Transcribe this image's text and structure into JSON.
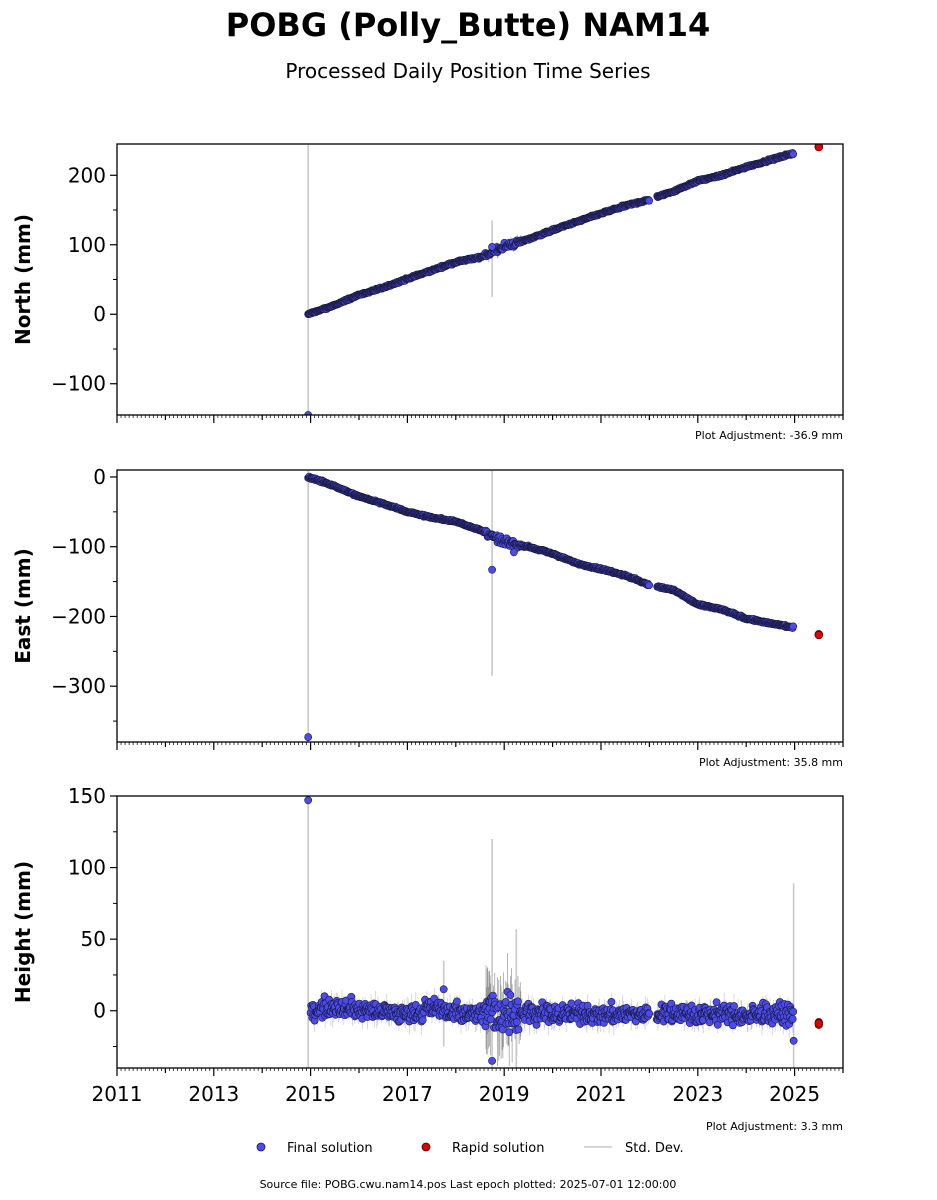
{
  "title": "POBG (Polly_Butte) NAM14",
  "subtitle": "Processed Daily Position Time Series",
  "source_text": "Source file: POBG.cwu.nam14.pos  Last epoch plotted: 2025-07-01 12:00:00",
  "legend": {
    "final": "Final solution",
    "rapid": "Rapid solution",
    "stddev": "Std. Dev."
  },
  "colors": {
    "final_fill": "#4b4bec",
    "final_edge": "#1a1a40",
    "rapid_fill": "#e00000",
    "rapid_edge": "#400000",
    "stddev": "#c8c8c8",
    "stddev_dark": "#555555"
  },
  "chart_data": [
    {
      "type": "scatter",
      "ylabel": "North (mm)",
      "adjustment": "Plot Adjustment: -36.9 mm",
      "xlim": [
        2011.0,
        2026.0
      ],
      "ylim": [
        -145,
        245
      ],
      "yticks": [
        -100,
        0,
        100,
        200
      ],
      "ytick_labels": [
        "−100",
        "0",
        "100",
        "200"
      ],
      "grid": false,
      "final_series": [
        {
          "x": 2014.95,
          "y": 0
        },
        {
          "x": 2015.5,
          "y": 13
        },
        {
          "x": 2016.0,
          "y": 28
        },
        {
          "x": 2016.5,
          "y": 38
        },
        {
          "x": 2017.0,
          "y": 51
        },
        {
          "x": 2017.5,
          "y": 63
        },
        {
          "x": 2018.0,
          "y": 75
        },
        {
          "x": 2018.5,
          "y": 82
        },
        {
          "x": 2018.75,
          "y": 89
        },
        {
          "x": 2019.0,
          "y": 97
        },
        {
          "x": 2019.5,
          "y": 108
        },
        {
          "x": 2020.0,
          "y": 121
        },
        {
          "x": 2020.5,
          "y": 133
        },
        {
          "x": 2021.0,
          "y": 145
        },
        {
          "x": 2021.5,
          "y": 156
        },
        {
          "x": 2022.0,
          "y": 165
        },
        {
          "x": 2022.5,
          "y": 177
        },
        {
          "x": 2023.0,
          "y": 192
        },
        {
          "x": 2023.5,
          "y": 200
        },
        {
          "x": 2024.0,
          "y": 212
        },
        {
          "x": 2024.5,
          "y": 222
        },
        {
          "x": 2024.98,
          "y": 232
        }
      ],
      "rapid_series": [
        {
          "x": 2025.5,
          "y": 241
        }
      ],
      "outliers": [
        {
          "x": 2014.95,
          "y": -145
        },
        {
          "x": 2018.75,
          "y": 97
        }
      ],
      "stddev_spikes": [
        {
          "x": 2014.95,
          "low": -145,
          "high": 245
        },
        {
          "x": 2018.75,
          "low": 25,
          "high": 135
        }
      ]
    },
    {
      "type": "scatter",
      "ylabel": "East (mm)",
      "adjustment": "Plot Adjustment: 35.8 mm",
      "xlim": [
        2011.0,
        2026.0
      ],
      "ylim": [
        -380,
        10
      ],
      "yticks": [
        -300,
        -200,
        -100,
        0
      ],
      "ytick_labels": [
        "−300",
        "−200",
        "−100",
        "0"
      ],
      "grid": false,
      "final_series": [
        {
          "x": 2014.95,
          "y": 0
        },
        {
          "x": 2015.5,
          "y": -13
        },
        {
          "x": 2016.0,
          "y": -28
        },
        {
          "x": 2016.5,
          "y": -38
        },
        {
          "x": 2017.0,
          "y": -50
        },
        {
          "x": 2017.5,
          "y": -58
        },
        {
          "x": 2018.0,
          "y": -64
        },
        {
          "x": 2018.5,
          "y": -76
        },
        {
          "x": 2018.75,
          "y": -85
        },
        {
          "x": 2019.0,
          "y": -93
        },
        {
          "x": 2019.5,
          "y": -100
        },
        {
          "x": 2020.0,
          "y": -110
        },
        {
          "x": 2020.5,
          "y": -124
        },
        {
          "x": 2021.0,
          "y": -132
        },
        {
          "x": 2021.5,
          "y": -141
        },
        {
          "x": 2022.0,
          "y": -155
        },
        {
          "x": 2022.5,
          "y": -162
        },
        {
          "x": 2023.0,
          "y": -183
        },
        {
          "x": 2023.5,
          "y": -190
        },
        {
          "x": 2024.0,
          "y": -203
        },
        {
          "x": 2024.5,
          "y": -210
        },
        {
          "x": 2024.98,
          "y": -216
        }
      ],
      "rapid_series": [
        {
          "x": 2025.5,
          "y": -226
        }
      ],
      "outliers": [
        {
          "x": 2014.95,
          "y": -373
        },
        {
          "x": 2018.75,
          "y": -133
        },
        {
          "x": 2019.2,
          "y": -108
        }
      ],
      "stddev_spikes": [
        {
          "x": 2014.95,
          "low": -380,
          "high": 10
        },
        {
          "x": 2018.75,
          "low": -285,
          "high": 10
        }
      ]
    },
    {
      "type": "scatter",
      "ylabel": "Height (mm)",
      "adjustment": "Plot Adjustment: 3.3 mm",
      "xlim": [
        2011.0,
        2026.0
      ],
      "ylim": [
        -40,
        150
      ],
      "yticks": [
        0,
        50,
        100,
        150
      ],
      "ytick_labels": [
        "0",
        "50",
        "100",
        "150"
      ],
      "xticks": [
        2011,
        2013,
        2015,
        2017,
        2019,
        2021,
        2023,
        2025
      ],
      "xtick_labels": [
        "2011",
        "2013",
        "2015",
        "2017",
        "2019",
        "2021",
        "2023",
        "2025"
      ],
      "grid": false,
      "final_series": [
        {
          "x": 2015.0,
          "y": 0
        },
        {
          "x": 2015.5,
          "y": 4
        },
        {
          "x": 2016.0,
          "y": 1
        },
        {
          "x": 2016.5,
          "y": -1
        },
        {
          "x": 2017.0,
          "y": -3
        },
        {
          "x": 2017.5,
          "y": 2
        },
        {
          "x": 2018.0,
          "y": -1
        },
        {
          "x": 2018.5,
          "y": -2
        },
        {
          "x": 2018.75,
          "y": 0
        },
        {
          "x": 2019.0,
          "y": -2
        },
        {
          "x": 2019.5,
          "y": 0
        },
        {
          "x": 2020.0,
          "y": -3
        },
        {
          "x": 2020.5,
          "y": -2
        },
        {
          "x": 2021.0,
          "y": -3
        },
        {
          "x": 2021.5,
          "y": -2
        },
        {
          "x": 2022.0,
          "y": -3
        },
        {
          "x": 2022.5,
          "y": -2
        },
        {
          "x": 2023.0,
          "y": -3
        },
        {
          "x": 2023.5,
          "y": -2
        },
        {
          "x": 2024.0,
          "y": -4
        },
        {
          "x": 2024.5,
          "y": -2
        },
        {
          "x": 2024.98,
          "y": -3
        }
      ],
      "rapid_series": [
        {
          "x": 2025.5,
          "y": -9
        }
      ],
      "outliers": [
        {
          "x": 2014.95,
          "y": 147
        },
        {
          "x": 2017.75,
          "y": 15
        },
        {
          "x": 2018.75,
          "y": -35
        },
        {
          "x": 2024.98,
          "y": -21
        }
      ],
      "stddev_spikes": [
        {
          "x": 2014.95,
          "low": -40,
          "high": 150
        },
        {
          "x": 2018.75,
          "low": -40,
          "high": 120
        },
        {
          "x": 2019.25,
          "low": -40,
          "high": 57
        },
        {
          "x": 2024.98,
          "low": -40,
          "high": 89
        },
        {
          "x": 2017.75,
          "low": -25,
          "high": 35
        }
      ]
    }
  ]
}
